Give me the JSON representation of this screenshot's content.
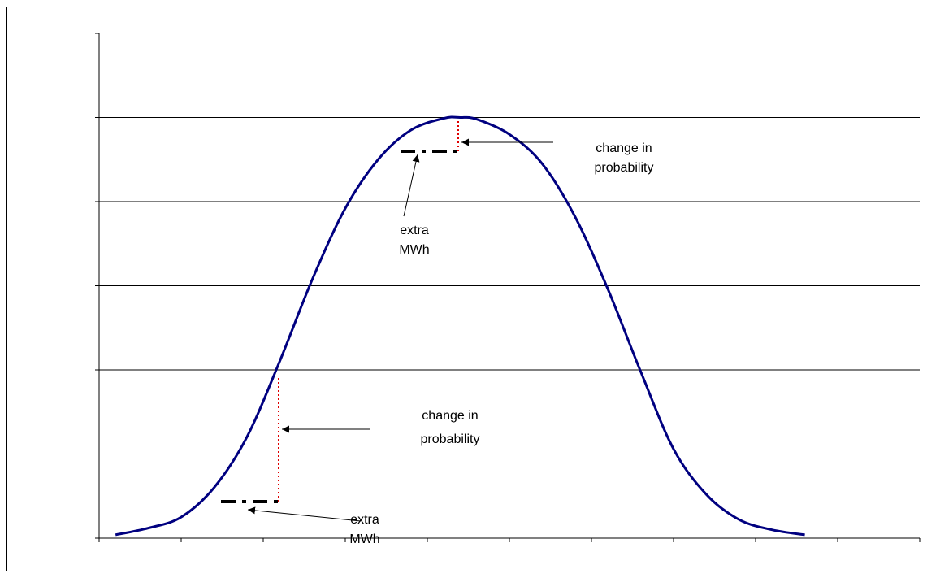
{
  "chart_data": {
    "type": "line",
    "x": [
      0.2,
      0.6,
      1.0,
      1.4,
      1.8,
      2.2,
      2.6,
      3.0,
      3.4,
      3.8,
      4.2,
      4.4,
      4.6,
      5.0,
      5.4,
      5.8,
      6.2,
      6.6,
      7.0,
      7.4,
      7.8,
      8.2,
      8.6
    ],
    "values": [
      0.04,
      0.12,
      0.25,
      0.6,
      1.2,
      2.1,
      3.08,
      3.92,
      4.5,
      4.85,
      4.99,
      5.0,
      4.98,
      4.8,
      4.45,
      3.82,
      2.96,
      1.98,
      1.06,
      0.52,
      0.22,
      0.1,
      0.04
    ],
    "color": "#000080",
    "xlim": [
      0,
      10
    ],
    "xticks": [
      0,
      1,
      2,
      3,
      4,
      5,
      6,
      7,
      8,
      9,
      10
    ],
    "ylim": [
      0,
      6
    ],
    "yticks": [
      0,
      1,
      2,
      3,
      4,
      5,
      6
    ],
    "grid": true,
    "annotations": [
      {
        "lines": [
          "change in",
          "probability"
        ]
      },
      {
        "lines": [
          "extra",
          "MWh"
        ]
      },
      {
        "lines": [
          "change in",
          "probability"
        ]
      },
      {
        "lines": [
          "extra",
          "MWh"
        ]
      }
    ]
  }
}
